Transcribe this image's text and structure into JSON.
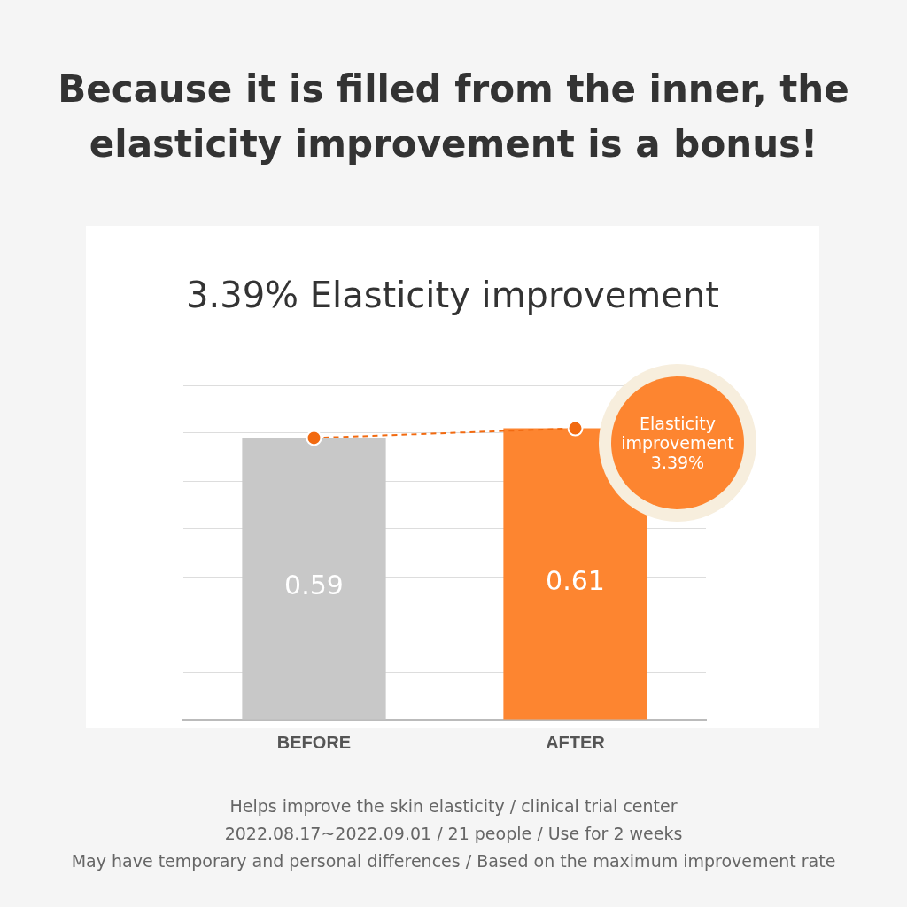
{
  "chart_data": {
    "type": "bar",
    "title": "Because it is filled from the inner, the elasticity improvement is a bonus!",
    "subtitle": "3.39% Elasticity improvement",
    "categories": [
      "BEFORE",
      "AFTER"
    ],
    "series": [
      {
        "colors": [
          "#c8c8c8",
          "#fd8530"
        ],
        "values": [
          0.59,
          0.61
        ],
        "value_labels": [
          "0.59",
          "0.61"
        ]
      },
      {
        "type": "line",
        "color": "#f26a10",
        "values": [
          0.59,
          0.61
        ],
        "line_style": "dashed",
        "marker": "circle"
      }
    ],
    "grid": "y",
    "tick_labels": "x",
    "legend": false,
    "annotations": [
      "Elasticity improvement 3.39%",
      "Helps improve the skin elasticity / clinical trial center",
      "2022.08.17~2022.09.01 / 21 people / Use for 2 weeks",
      "May have temporary and personal differences / Based on the maximum improvement rate"
    ]
  }
}
